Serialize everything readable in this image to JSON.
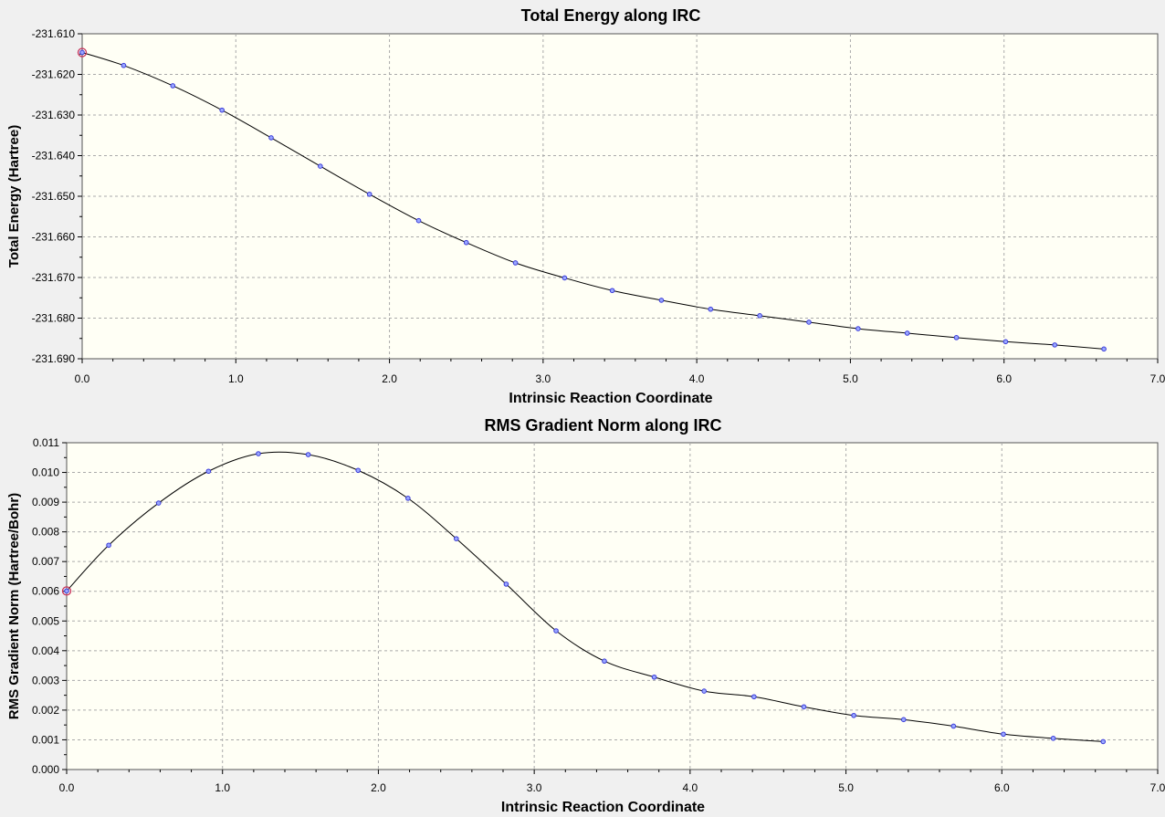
{
  "chart_data": [
    {
      "type": "line",
      "title": "Total Energy along IRC",
      "xlabel": "Intrinsic Reaction Coordinate",
      "ylabel": "Total Energy (Hartree)",
      "xlim": [
        0.0,
        7.0
      ],
      "ylim": [
        -231.69,
        -231.61
      ],
      "x_ticks": [
        "0.0",
        "1.0",
        "2.0",
        "3.0",
        "4.0",
        "5.0",
        "6.0",
        "7.0"
      ],
      "y_ticks": [
        "-231.610",
        "-231.620",
        "-231.630",
        "-231.640",
        "-231.650",
        "-231.660",
        "-231.670",
        "-231.680",
        "-231.690"
      ],
      "grid": true,
      "highlight_index": 0,
      "x": [
        0.0,
        0.27,
        0.59,
        0.91,
        1.23,
        1.55,
        1.87,
        2.19,
        2.5,
        2.82,
        3.14,
        3.45,
        3.77,
        4.09,
        4.41,
        4.73,
        5.05,
        5.37,
        5.69,
        6.01,
        6.33,
        6.65
      ],
      "y": [
        -231.6146,
        -231.6178,
        -231.6228,
        -231.6288,
        -231.6356,
        -231.6426,
        -231.6495,
        -231.656,
        -231.6614,
        -231.6664,
        -231.6701,
        -231.6732,
        -231.6756,
        -231.6778,
        -231.6794,
        -231.681,
        -231.6826,
        -231.6837,
        -231.6848,
        -231.6858,
        -231.6866,
        -231.6876
      ],
      "colors": {
        "plot_bg": "#fffff5",
        "line": "#000000",
        "marker": "#3a3ad8",
        "highlight": "#c8325a",
        "grid": "#aaaaaa"
      }
    },
    {
      "type": "line",
      "title": "RMS Gradient Norm along IRC",
      "xlabel": "Intrinsic Reaction Coordinate",
      "ylabel": "RMS Gradient Norm (Hartree/Bohr)",
      "xlim": [
        0.0,
        7.0
      ],
      "ylim": [
        0.0,
        0.011
      ],
      "x_ticks": [
        "0.0",
        "1.0",
        "2.0",
        "3.0",
        "4.0",
        "5.0",
        "6.0",
        "7.0"
      ],
      "y_ticks": [
        "0.000",
        "0.001",
        "0.002",
        "0.003",
        "0.004",
        "0.005",
        "0.006",
        "0.007",
        "0.008",
        "0.009",
        "0.010",
        "0.011"
      ],
      "grid": true,
      "highlight_index": 0,
      "x": [
        0.0,
        0.27,
        0.59,
        0.91,
        1.23,
        1.55,
        1.87,
        2.19,
        2.5,
        2.82,
        3.14,
        3.45,
        3.77,
        4.09,
        4.41,
        4.73,
        5.05,
        5.37,
        5.69,
        6.01,
        6.33,
        6.65
      ],
      "y": [
        0.00601,
        0.00755,
        0.00897,
        0.01004,
        0.01063,
        0.0106,
        0.01007,
        0.00913,
        0.00777,
        0.00624,
        0.00467,
        0.00365,
        0.00311,
        0.00264,
        0.00245,
        0.00211,
        0.00182,
        0.00168,
        0.00146,
        0.00119,
        0.00105,
        0.00094
      ],
      "colors": {
        "plot_bg": "#fffff5",
        "line": "#000000",
        "marker": "#3a3ad8",
        "highlight": "#c8325a",
        "grid": "#aaaaaa"
      }
    }
  ]
}
